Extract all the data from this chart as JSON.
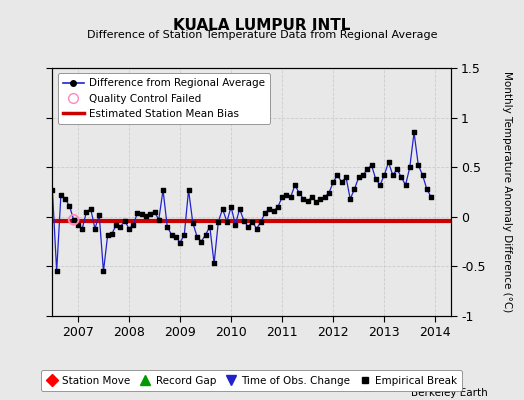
{
  "title": "KUALA LUMPUR INTL",
  "subtitle": "Difference of Station Temperature Data from Regional Average",
  "ylabel": "Monthly Temperature Anomaly Difference (°C)",
  "xlim": [
    2006.5,
    2014.3
  ],
  "ylim": [
    -1.0,
    1.5
  ],
  "yticks": [
    -1.0,
    -0.5,
    0.0,
    0.5,
    1.0,
    1.5
  ],
  "xticks": [
    2007,
    2008,
    2009,
    2010,
    2011,
    2012,
    2013,
    2014
  ],
  "bias_value": -0.04,
  "background_color": "#e8e8e8",
  "line_color": "#2222cc",
  "bias_color": "#cc0000",
  "qc_fail_color": "#ff88bb",
  "watermark": "Berkeley Earth",
  "monthly_values": [
    0.27,
    -0.55,
    0.22,
    0.18,
    0.11,
    -0.03,
    -0.08,
    -0.12,
    0.05,
    0.08,
    -0.12,
    0.02,
    -0.55,
    -0.18,
    -0.17,
    -0.08,
    -0.1,
    -0.04,
    -0.12,
    -0.08,
    0.04,
    0.03,
    0.01,
    0.03,
    0.05,
    -0.03,
    0.27,
    -0.1,
    -0.18,
    -0.2,
    -0.26,
    -0.18,
    0.27,
    -0.06,
    -0.2,
    -0.25,
    -0.18,
    -0.1,
    -0.47,
    -0.05,
    0.08,
    -0.05,
    0.1,
    -0.08,
    0.08,
    -0.04,
    -0.1,
    -0.05,
    -0.12,
    -0.05,
    0.04,
    0.08,
    0.06,
    0.1,
    0.2,
    0.22,
    0.2,
    0.32,
    0.24,
    0.18,
    0.16,
    0.2,
    0.15,
    0.18,
    0.2,
    0.24,
    0.35,
    0.42,
    0.35,
    0.4,
    0.18,
    0.28,
    0.4,
    0.42,
    0.48,
    0.52,
    0.38,
    0.32,
    0.42,
    0.55,
    0.42,
    0.48,
    0.4,
    0.32,
    0.5,
    0.85,
    0.52,
    0.42,
    0.28,
    0.2
  ],
  "start_year": 2006,
  "start_month": 7,
  "qc_fail_time": 2006.917
}
